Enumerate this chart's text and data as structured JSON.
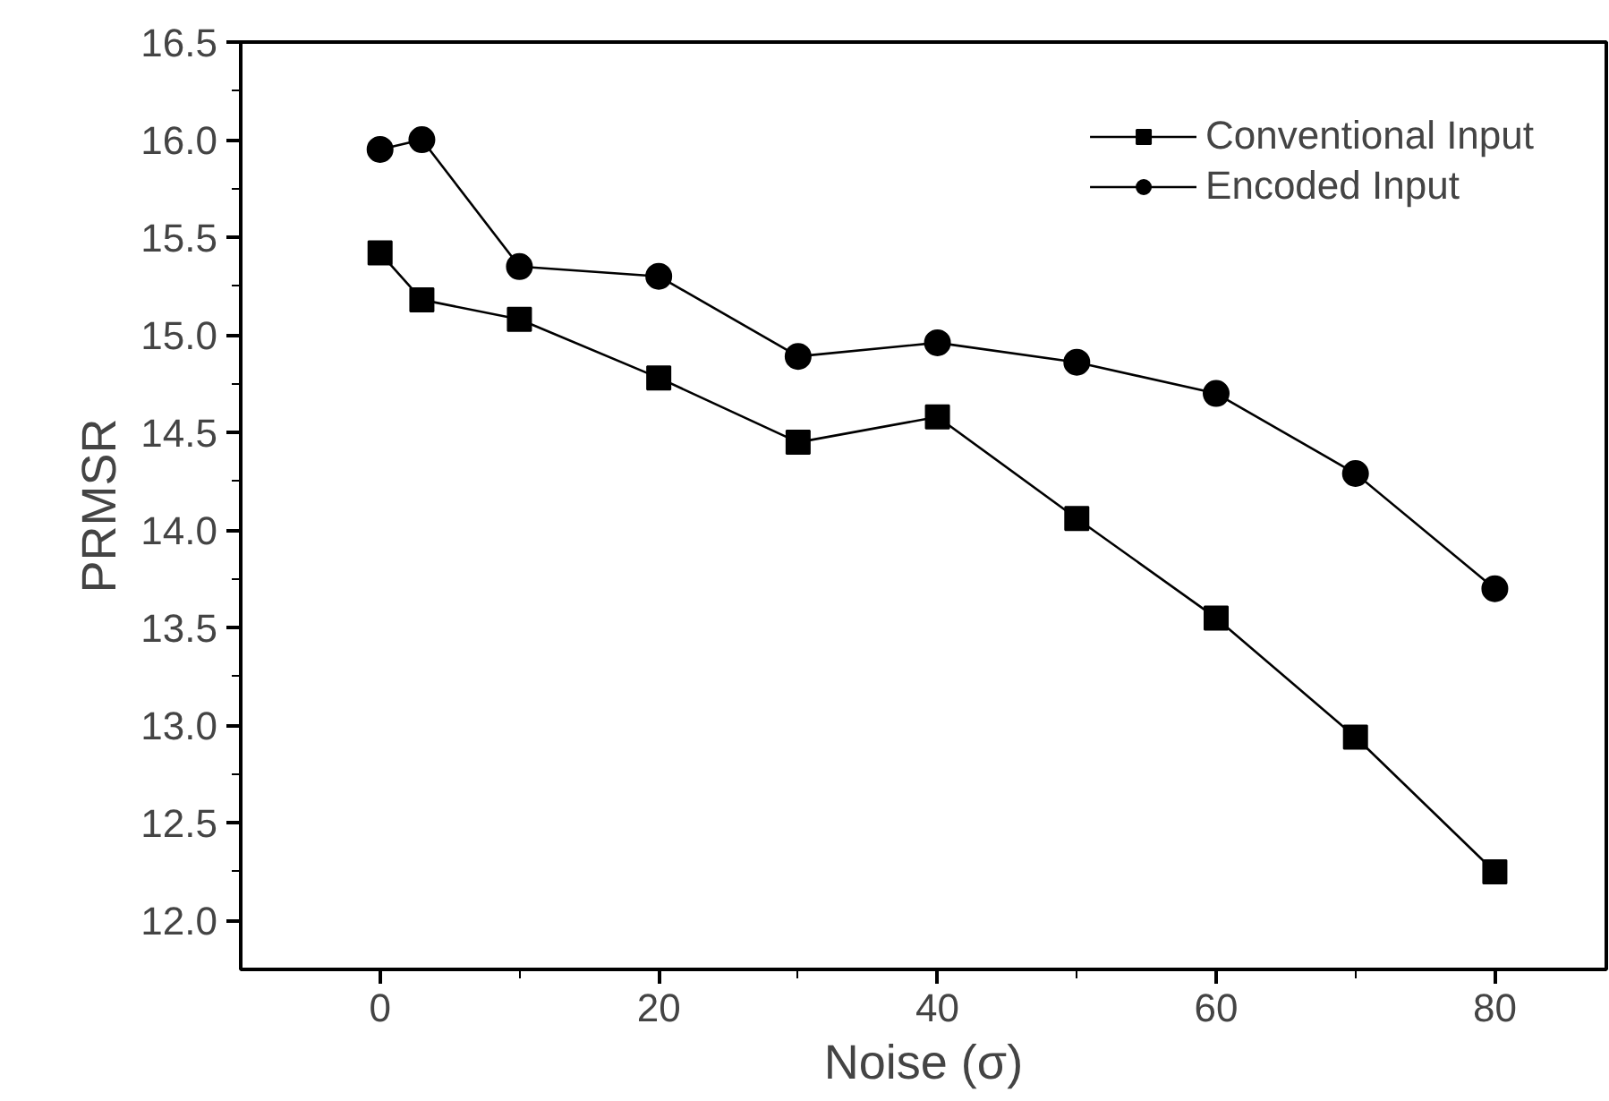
{
  "chart_data": {
    "type": "line",
    "xlabel": "Noise (σ)",
    "ylabel": "PRMSR",
    "x": [
      0,
      3,
      10,
      20,
      30,
      40,
      50,
      60,
      70,
      80
    ],
    "series": [
      {
        "name": "Conventional Input",
        "color": "#000000",
        "marker": "square",
        "values": [
          15.42,
          15.18,
          15.08,
          14.78,
          14.45,
          14.58,
          14.06,
          13.55,
          12.94,
          12.25
        ]
      },
      {
        "name": "Encoded Input",
        "color": "#000000",
        "marker": "circle",
        "values": [
          15.95,
          16.0,
          15.35,
          15.3,
          14.89,
          14.96,
          14.86,
          14.7,
          14.29,
          13.7
        ]
      }
    ],
    "xlim": [
      -10,
      88
    ],
    "xticks": [
      0,
      {
        "value": 10,
        "label": null
      },
      20,
      {
        "value": 30,
        "label": null
      },
      40,
      {
        "value": 50,
        "label": null
      },
      60,
      {
        "value": 70,
        "label": null
      },
      80
    ],
    "ylim": [
      11.75,
      16.5
    ],
    "yticks": [
      {
        "value": 12,
        "label": "12.0"
      },
      {
        "value": 12.25,
        "label": null
      },
      {
        "value": 12.5,
        "label": "12.5"
      },
      {
        "value": 12.75,
        "label": null
      },
      {
        "value": 13,
        "label": "13.0"
      },
      {
        "value": 13.25,
        "label": null
      },
      {
        "value": 13.5,
        "label": "13.5"
      },
      {
        "value": 13.75,
        "label": null
      },
      {
        "value": 14,
        "label": "14.0"
      },
      {
        "value": 14.25,
        "label": null
      },
      {
        "value": 14.5,
        "label": "14.5"
      },
      {
        "value": 14.75,
        "label": null
      },
      {
        "value": 15,
        "label": "15.0"
      },
      {
        "value": 15.25,
        "label": null
      },
      {
        "value": 15.5,
        "label": "15.5"
      },
      {
        "value": 15.75,
        "label": null
      },
      {
        "value": 16,
        "label": "16.0"
      },
      {
        "value": 16.25,
        "label": null
      },
      {
        "value": 16.5,
        "label": "16.5"
      }
    ],
    "grid": false,
    "legend": "top right",
    "line_style": "solid"
  }
}
